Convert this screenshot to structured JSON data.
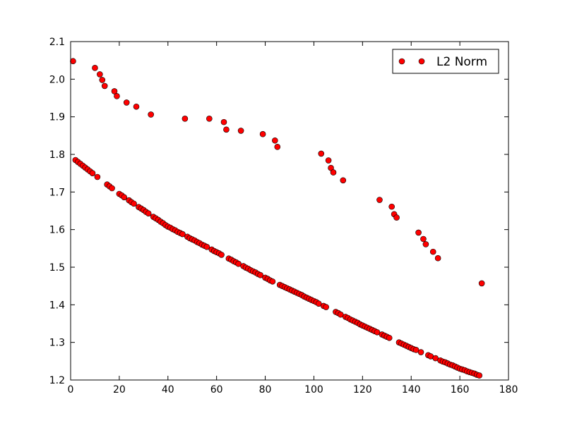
{
  "chart_data": {
    "type": "scatter",
    "series": [
      {
        "name": "L2 Norm",
        "color": "#ff0000",
        "x": [
          2,
          3,
          4,
          5,
          6,
          7,
          8,
          9,
          11,
          15,
          16,
          17,
          20,
          21,
          22,
          24,
          25,
          26,
          28,
          29,
          30,
          31,
          32,
          34,
          35,
          36,
          37,
          38,
          39,
          40,
          41,
          42,
          43,
          44,
          45,
          46,
          48,
          49,
          50,
          51,
          52,
          53,
          54,
          55,
          56,
          58,
          59,
          60,
          61,
          62,
          65,
          66,
          67,
          68,
          69,
          71,
          72,
          73,
          74,
          75,
          76,
          77,
          78,
          80,
          81,
          82,
          83,
          86,
          87,
          88,
          89,
          90,
          91,
          92,
          93,
          94,
          95,
          96,
          97,
          98,
          99,
          100,
          101,
          102,
          104,
          105,
          109,
          110,
          111,
          113,
          114,
          115,
          116,
          117,
          118,
          119,
          120,
          121,
          122,
          123,
          124,
          125,
          126,
          128,
          129,
          130,
          131,
          135,
          136,
          137,
          138,
          139,
          140,
          141,
          142,
          144,
          147,
          148,
          150,
          152,
          153,
          154,
          155,
          156,
          157,
          158,
          159,
          160,
          161,
          162,
          163,
          164,
          165,
          166,
          167,
          168,
          1,
          10,
          12,
          13,
          14,
          18,
          19,
          23,
          27,
          33,
          47,
          57,
          63,
          64,
          70,
          79,
          84,
          85,
          103,
          106,
          107,
          108,
          112,
          127,
          132,
          133,
          134,
          143,
          145,
          146,
          149,
          151,
          169
        ],
        "values": [
          1.785,
          1.78,
          1.775,
          1.77,
          1.765,
          1.76,
          1.755,
          1.75,
          1.74,
          1.72,
          1.715,
          1.71,
          1.695,
          1.691,
          1.686,
          1.678,
          1.673,
          1.669,
          1.66,
          1.656,
          1.652,
          1.647,
          1.643,
          1.634,
          1.63,
          1.626,
          1.621,
          1.617,
          1.612,
          1.608,
          1.605,
          1.601,
          1.598,
          1.594,
          1.591,
          1.588,
          1.581,
          1.577,
          1.574,
          1.571,
          1.567,
          1.564,
          1.56,
          1.557,
          1.554,
          1.547,
          1.543,
          1.54,
          1.537,
          1.533,
          1.523,
          1.52,
          1.516,
          1.513,
          1.509,
          1.503,
          1.499,
          1.496,
          1.492,
          1.489,
          1.486,
          1.482,
          1.479,
          1.472,
          1.469,
          1.465,
          1.462,
          1.453,
          1.45,
          1.447,
          1.444,
          1.441,
          1.438,
          1.435,
          1.432,
          1.429,
          1.426,
          1.422,
          1.419,
          1.416,
          1.413,
          1.41,
          1.407,
          1.403,
          1.397,
          1.394,
          1.381,
          1.378,
          1.374,
          1.368,
          1.365,
          1.361,
          1.358,
          1.355,
          1.352,
          1.348,
          1.345,
          1.342,
          1.339,
          1.336,
          1.333,
          1.33,
          1.327,
          1.321,
          1.318,
          1.315,
          1.312,
          1.3,
          1.297,
          1.294,
          1.291,
          1.288,
          1.285,
          1.282,
          1.28,
          1.274,
          1.266,
          1.263,
          1.258,
          1.252,
          1.249,
          1.247,
          1.244,
          1.241,
          1.239,
          1.236,
          1.233,
          1.23,
          1.228,
          1.226,
          1.223,
          1.221,
          1.219,
          1.217,
          1.214,
          1.212,
          2.048,
          2.03,
          2.013,
          1.998,
          1.982,
          1.968,
          1.955,
          1.938,
          1.927,
          1.906,
          1.895,
          1.895,
          1.886,
          1.866,
          1.863,
          1.854,
          1.837,
          1.82,
          1.802,
          1.784,
          1.764,
          1.752,
          1.731,
          1.679,
          1.661,
          1.641,
          1.632,
          1.592,
          1.575,
          1.561,
          1.541,
          1.524,
          1.457
        ]
      }
    ],
    "xlim": [
      0,
      180
    ],
    "xticks": [
      0,
      20,
      40,
      60,
      80,
      100,
      120,
      140,
      160,
      180
    ],
    "ylim": [
      1.2,
      2.1
    ],
    "yticks": [
      1.2,
      1.3,
      1.4,
      1.5,
      1.6,
      1.7,
      1.8,
      1.9,
      {
        "value": 2,
        "label": "2.0"
      },
      2.1
    ],
    "legend": "upper right"
  }
}
